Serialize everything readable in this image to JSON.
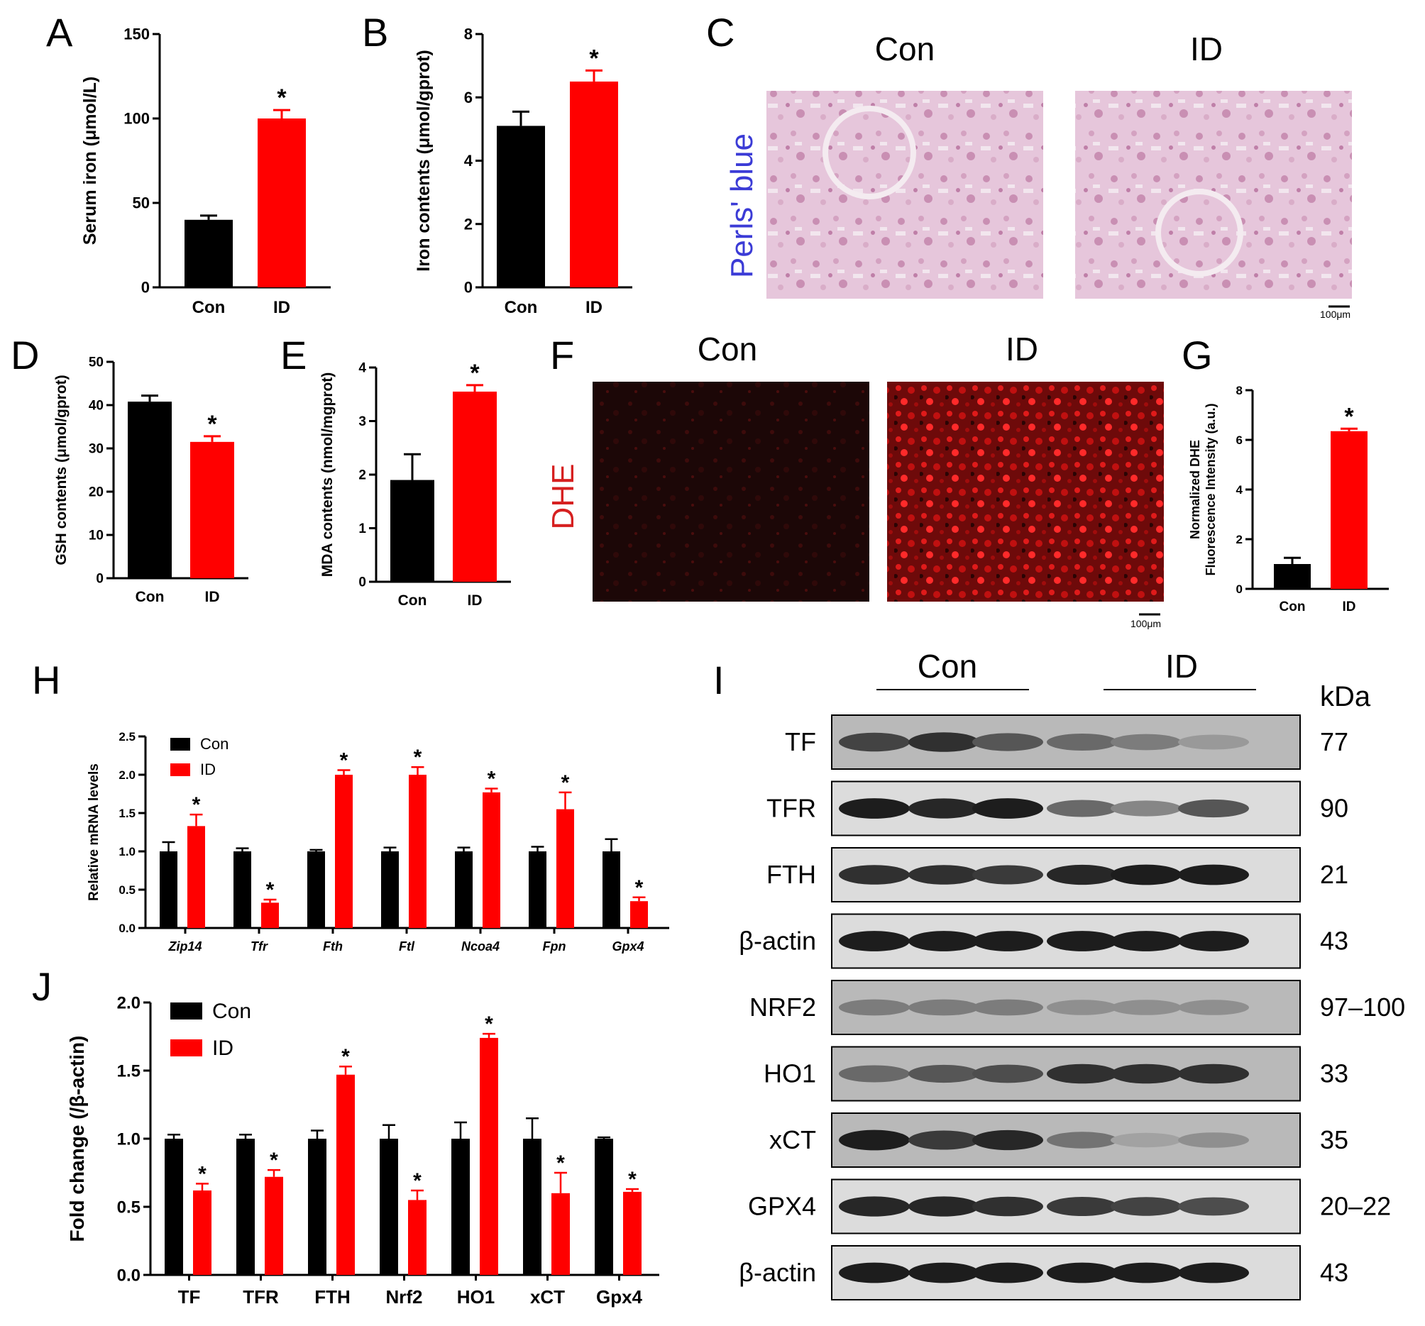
{
  "panel_letters": {
    "A": "A",
    "B": "B",
    "C": "C",
    "D": "D",
    "E": "E",
    "F": "F",
    "G": "G",
    "H": "H",
    "I": "I",
    "J": "J"
  },
  "colors": {
    "con": "#000000",
    "id": "#ff0000",
    "perls_label": "#3b3bd6",
    "dhe_label": "#d62020"
  },
  "significance_marker": "*",
  "chart_data": [
    {
      "panel": "A",
      "type": "bar",
      "categories": [
        "Con",
        "ID"
      ],
      "values": [
        40,
        100
      ],
      "errors": [
        2.5,
        5
      ],
      "significant": [
        false,
        true
      ],
      "ylabel": "Serum iron (μmol/L)",
      "ylim": [
        0,
        150
      ],
      "yticks": [
        0,
        50,
        100,
        150
      ],
      "colors": [
        "#000000",
        "#ff0000"
      ]
    },
    {
      "panel": "B",
      "type": "bar",
      "categories": [
        "Con",
        "ID"
      ],
      "values": [
        5.1,
        6.5
      ],
      "errors": [
        0.45,
        0.35
      ],
      "significant": [
        false,
        true
      ],
      "ylabel": "Iron contents (μmol/gprot)",
      "ylim": [
        0,
        8
      ],
      "yticks": [
        0,
        2,
        4,
        6,
        8
      ],
      "colors": [
        "#000000",
        "#ff0000"
      ]
    },
    {
      "panel": "D",
      "type": "bar",
      "categories": [
        "Con",
        "ID"
      ],
      "values": [
        40.8,
        31.5
      ],
      "errors": [
        1.4,
        1.3
      ],
      "significant": [
        false,
        true
      ],
      "ylabel": "GSH contents (μmol/gprot)",
      "ylim": [
        0,
        50
      ],
      "yticks": [
        0,
        10,
        20,
        30,
        40,
        50
      ],
      "colors": [
        "#000000",
        "#ff0000"
      ]
    },
    {
      "panel": "E",
      "type": "bar",
      "categories": [
        "Con",
        "ID"
      ],
      "values": [
        1.9,
        3.55
      ],
      "errors": [
        0.48,
        0.12
      ],
      "significant": [
        false,
        true
      ],
      "ylabel": "MDA contents (nmol/mgprot)",
      "ylim": [
        0,
        4
      ],
      "yticks": [
        0,
        1,
        2,
        3,
        4
      ],
      "colors": [
        "#000000",
        "#ff0000"
      ]
    },
    {
      "panel": "G",
      "type": "bar",
      "categories": [
        "Con",
        "ID"
      ],
      "values": [
        1.0,
        6.35
      ],
      "errors": [
        0.25,
        0.1
      ],
      "significant": [
        false,
        true
      ],
      "ylabel": [
        "Normalized DHE",
        "Fluorescence Intensity (a.u.)"
      ],
      "ylim": [
        0,
        8
      ],
      "yticks": [
        0,
        2,
        4,
        6,
        8
      ],
      "colors": [
        "#000000",
        "#ff0000"
      ]
    },
    {
      "panel": "H",
      "type": "bar",
      "categories": [
        "Zip14",
        "Tfr",
        "Fth",
        "Ftl",
        "Ncoa4",
        "Fpn",
        "Gpx4"
      ],
      "series": [
        {
          "name": "Con",
          "color": "#000000",
          "values": [
            1.0,
            1.0,
            1.0,
            1.0,
            1.0,
            1.0,
            1.0
          ],
          "errors": [
            0.12,
            0.04,
            0.02,
            0.05,
            0.05,
            0.06,
            0.16
          ]
        },
        {
          "name": "ID",
          "color": "#ff0000",
          "values": [
            1.33,
            0.33,
            2.0,
            2.0,
            1.77,
            1.55,
            0.35
          ],
          "errors": [
            0.15,
            0.04,
            0.06,
            0.1,
            0.05,
            0.22,
            0.05
          ]
        }
      ],
      "significant": [
        true,
        true,
        true,
        true,
        true,
        true,
        true
      ],
      "ylabel": "Relative mRNA levels",
      "ylim": [
        0,
        2.5
      ],
      "yticks": [
        "0.0",
        "0.5",
        "1.0",
        "1.5",
        "2.0",
        "2.5"
      ],
      "legend": "top-left"
    },
    {
      "panel": "J",
      "type": "bar",
      "categories": [
        "TF",
        "TFR",
        "FTH",
        "Nrf2",
        "HO1",
        "xCT",
        "Gpx4"
      ],
      "series": [
        {
          "name": "Con",
          "color": "#000000",
          "values": [
            1.0,
            1.0,
            1.0,
            1.0,
            1.0,
            1.0,
            1.0
          ],
          "errors": [
            0.03,
            0.03,
            0.06,
            0.1,
            0.12,
            0.15,
            0.01
          ]
        },
        {
          "name": "ID",
          "color": "#ff0000",
          "values": [
            0.62,
            0.72,
            1.47,
            0.55,
            1.74,
            0.6,
            0.61
          ],
          "errors": [
            0.05,
            0.05,
            0.06,
            0.07,
            0.03,
            0.15,
            0.02
          ]
        }
      ],
      "significant": [
        true,
        true,
        true,
        true,
        true,
        true,
        true
      ],
      "ylabel": "Fold change (/β-actin)",
      "ylim": [
        0,
        2.0
      ],
      "yticks": [
        "0.0",
        "0.5",
        "1.0",
        "1.5",
        "2.0"
      ],
      "legend": "top-left"
    }
  ],
  "panel_C": {
    "con_label": "Con",
    "id_label": "ID",
    "row_label": "Perls' blue",
    "scale_bar": "100μm"
  },
  "panel_F": {
    "con_label": "Con",
    "id_label": "ID",
    "row_label": "DHE",
    "scale_bar": "100μm"
  },
  "panel_I": {
    "con_label": "Con",
    "id_label": "ID",
    "kda_label": "kDa",
    "blots": [
      {
        "protein": "TF",
        "kda": "77",
        "lanes": [
          0.7,
          0.8,
          0.6,
          0.5,
          0.4,
          0.25
        ]
      },
      {
        "protein": "TFR",
        "kda": "90",
        "lanes": [
          0.9,
          0.85,
          0.9,
          0.5,
          0.35,
          0.6
        ]
      },
      {
        "protein": "FTH",
        "kda": "21",
        "lanes": [
          0.8,
          0.8,
          0.75,
          0.85,
          0.9,
          0.9
        ]
      },
      {
        "protein": "β-actin",
        "kda": "43",
        "lanes": [
          0.9,
          0.9,
          0.9,
          0.9,
          0.9,
          0.9
        ]
      },
      {
        "protein": "NRF2",
        "kda": "97–100",
        "lanes": [
          0.4,
          0.4,
          0.4,
          0.3,
          0.3,
          0.3
        ]
      },
      {
        "protein": "HO1",
        "kda": "33",
        "lanes": [
          0.5,
          0.6,
          0.65,
          0.8,
          0.8,
          0.8
        ]
      },
      {
        "protein": "xCT",
        "kda": "35",
        "lanes": [
          0.9,
          0.75,
          0.85,
          0.45,
          0.2,
          0.3
        ]
      },
      {
        "protein": "GPX4",
        "kda": "20–22",
        "lanes": [
          0.85,
          0.85,
          0.8,
          0.75,
          0.7,
          0.65
        ]
      },
      {
        "protein": "β-actin",
        "kda": "43",
        "lanes": [
          0.9,
          0.9,
          0.9,
          0.9,
          0.9,
          0.9
        ]
      }
    ]
  }
}
